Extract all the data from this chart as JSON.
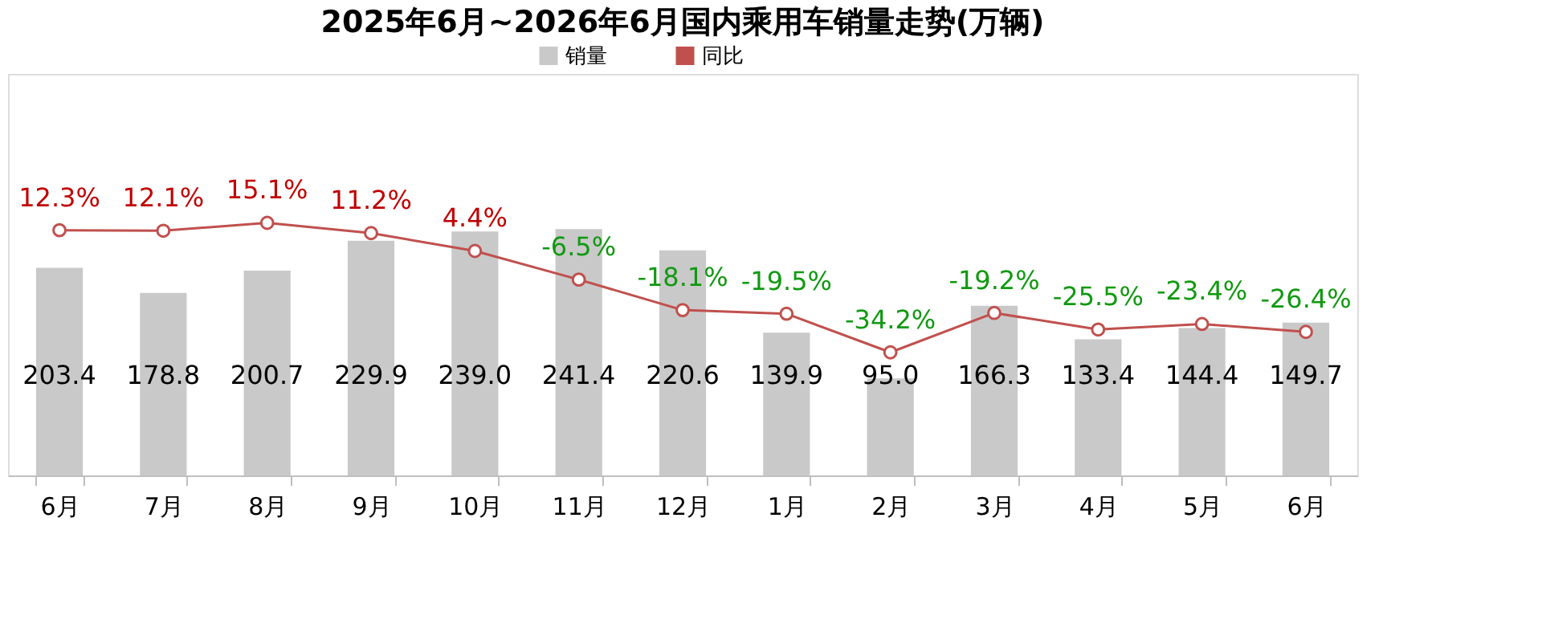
{
  "chart_data": {
    "type": "bar",
    "title": "2025年6月~2026年6月国内乘用车销量走势(万辆)",
    "categories": [
      "6月",
      "7月",
      "8月",
      "9月",
      "10月",
      "11月",
      "12月",
      "1月",
      "2月",
      "3月",
      "4月",
      "5月",
      "6月"
    ],
    "series": [
      {
        "name": "销量",
        "color": "#c9c9c9",
        "values": [
          203.4,
          178.8,
          200.7,
          229.9,
          239.0,
          241.4,
          220.6,
          139.9,
          95.0,
          166.3,
          133.4,
          144.4,
          149.7
        ],
        "value_labels": [
          "203.4",
          "178.8",
          "200.7",
          "229.9",
          "239.0",
          "241.4",
          "220.6",
          "139.9",
          "95.0",
          "166.3",
          "133.4",
          "144.4",
          "149.7"
        ]
      },
      {
        "name": "同比",
        "type": "line",
        "axis": "y2",
        "color": "#c0504d",
        "marker": "circle",
        "values": [
          12.3,
          12.1,
          15.1,
          11.2,
          4.4,
          -6.5,
          -18.1,
          -19.5,
          -34.2,
          -19.2,
          -25.5,
          -23.4,
          -26.4
        ],
        "value_labels": [
          "12.3%",
          "12.1%",
          "15.1%",
          "11.2%",
          "4.4%",
          "-6.5%",
          "-18.1%",
          "-19.5%",
          "-34.2%",
          "-19.2%",
          "-25.5%",
          "-23.4%",
          "-26.4%"
        ]
      }
    ],
    "legend": "top",
    "grid": false
  }
}
